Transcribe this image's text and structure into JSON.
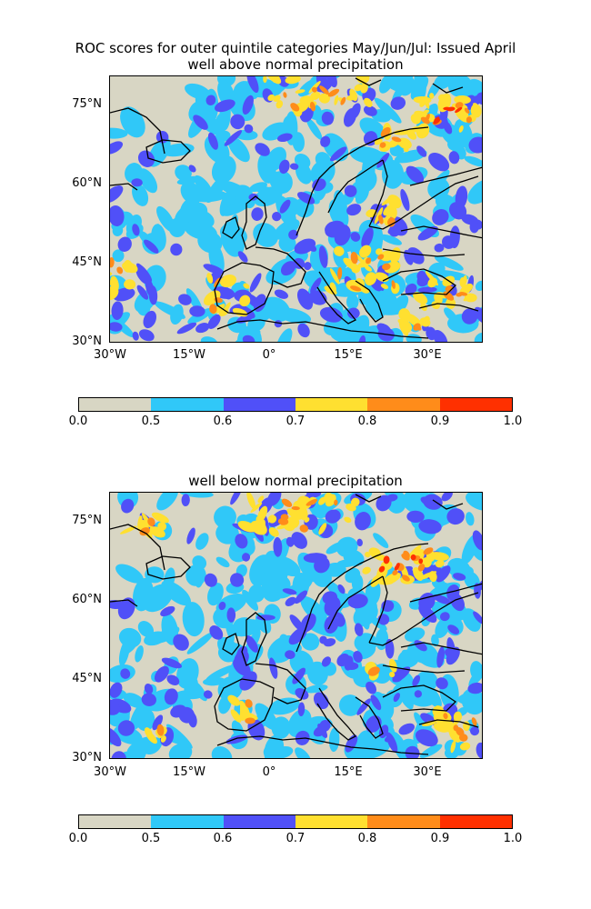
{
  "main_title": "ROC scores for outer quintile categories May/Jun/Jul: Issued April",
  "colors": {
    "background": "#d8d6c4",
    "levels": [
      "#d8d6c4",
      "#30c8f8",
      "#5050f8",
      "#ffe030",
      "#ff8c1a",
      "#ff3000"
    ],
    "coast": "#000000"
  },
  "lat_ticks": [
    "75°N",
    "60°N",
    "45°N",
    "30°N"
  ],
  "lon_ticks": [
    "30°W",
    "15°W",
    "0°",
    "15°E",
    "30°E"
  ],
  "colorbar_ticks": [
    "0.0",
    "0.5",
    "0.6",
    "0.7",
    "0.8",
    "0.9",
    "1.0"
  ],
  "panels": [
    {
      "subtitle": "well above normal precipitation"
    },
    {
      "subtitle": "well below normal precipitation"
    }
  ]
}
